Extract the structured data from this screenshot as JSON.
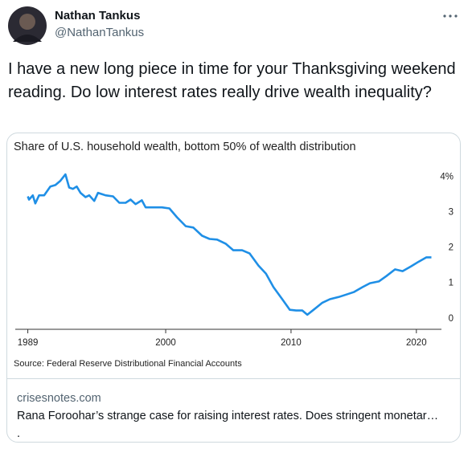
{
  "author": {
    "name": "Nathan Tankus",
    "handle": "@NathanTankus"
  },
  "tweet_text": "I have a new long piece in time for your Thanksgiving weekend reading. Do low interest rates really drive wealth inequality?",
  "chart_data": {
    "type": "line",
    "title": "Share of U.S. household wealth, bottom 50% of wealth distribution",
    "source": "Source: Federal Reserve Distributional Financial Accounts",
    "color": "#1f8fe6",
    "x": [
      1989,
      1989.1,
      1989.4,
      1989.6,
      1989.9,
      1990.3,
      1990.8,
      1991.2,
      1991.6,
      1992.0,
      1992.3,
      1992.6,
      1992.9,
      1993.2,
      1993.6,
      1993.9,
      1994.3,
      1994.6,
      1995.2,
      1995.8,
      1996.3,
      1996.8,
      1997.2,
      1997.6,
      1998.1,
      1998.4,
      1999.0,
      1999.7,
      2000.3,
      2000.9,
      2001.6,
      2002.2,
      2002.9,
      2003.5,
      2004.1,
      2004.8,
      2005.4,
      2006.1,
      2006.7,
      2007.4,
      2008.0,
      2008.6,
      2009.3,
      2009.9,
      2010.4,
      2010.9,
      2011.3,
      2011.8,
      2012.5,
      2013.1,
      2013.8,
      2014.4,
      2015.0,
      2015.7,
      2016.3,
      2017.0,
      2017.6,
      2018.3,
      2018.9,
      2019.6,
      2020.2,
      2020.8,
      2021.2
    ],
    "values": [
      3.45,
      3.36,
      3.48,
      3.25,
      3.48,
      3.48,
      3.73,
      3.77,
      3.89,
      4.07,
      3.7,
      3.66,
      3.73,
      3.55,
      3.43,
      3.48,
      3.32,
      3.55,
      3.48,
      3.45,
      3.27,
      3.27,
      3.36,
      3.23,
      3.34,
      3.14,
      3.14,
      3.14,
      3.11,
      2.86,
      2.61,
      2.57,
      2.34,
      2.25,
      2.23,
      2.11,
      1.93,
      1.93,
      1.84,
      1.5,
      1.27,
      0.89,
      0.55,
      0.25,
      0.23,
      0.23,
      0.11,
      0.25,
      0.45,
      0.55,
      0.61,
      0.68,
      0.75,
      0.89,
      1.0,
      1.05,
      1.2,
      1.39,
      1.34,
      1.48,
      1.61,
      1.73,
      1.73
    ],
    "xlim": [
      1988,
      2022
    ],
    "xticks": [
      1989,
      2000,
      2010,
      2020
    ],
    "ylim": [
      -0.3,
      4.3
    ],
    "yticks": [
      0,
      1,
      2,
      3,
      {
        "value": 4,
        "label": "4%"
      }
    ],
    "y_axis_side": "right",
    "grid": false
  },
  "link_card": {
    "domain": "crisesnotes.com",
    "description": "Rana Foroohar’s strange case for raising interest rates. Does stringent monetar…",
    "extra": "."
  }
}
